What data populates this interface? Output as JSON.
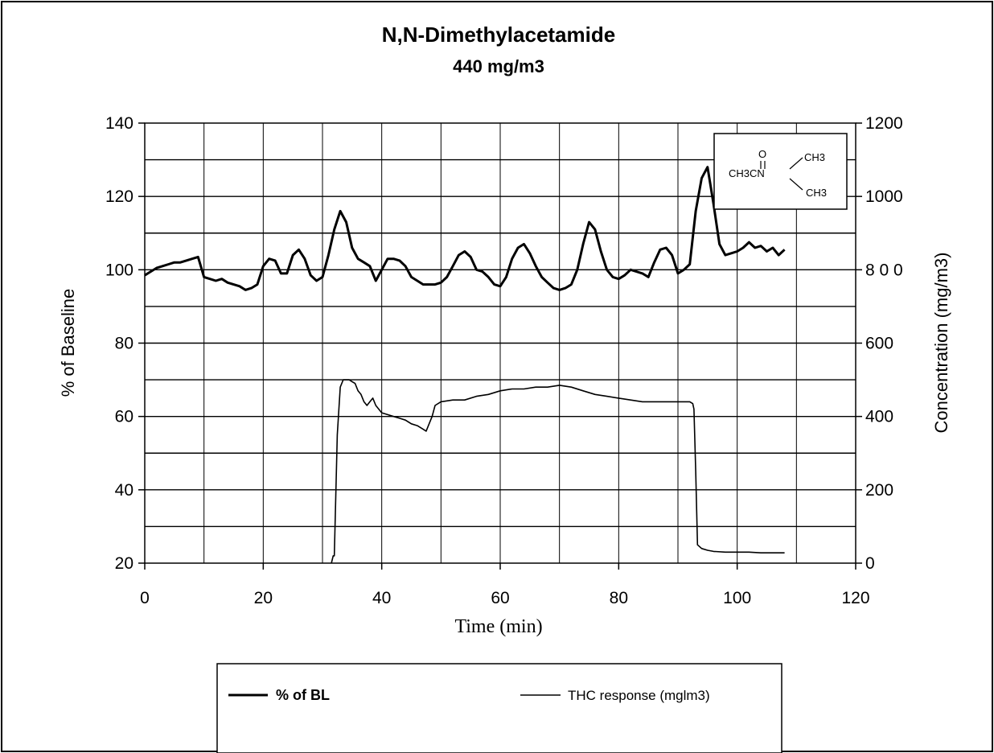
{
  "chart_data": {
    "type": "line",
    "title": "N,N-Dimethylacetamide",
    "subtitle": "440 mg/m3",
    "xlabel": "Time (min)",
    "ylabel_left": "% of Baseline",
    "ylabel_right": "Concentration (mg/m3)",
    "xlim": [
      0,
      120
    ],
    "ylim_left": [
      20,
      140
    ],
    "ylim_right": [
      0,
      1200
    ],
    "x_ticks": [
      "0",
      "20",
      "40",
      "60",
      "80",
      "100",
      "120"
    ],
    "y_left_ticks": [
      "20",
      "40",
      "60",
      "80",
      "100",
      "120",
      "140"
    ],
    "y_right_ticks": [
      "0",
      "200",
      "400",
      "600",
      "8 0 0",
      "1000",
      "1200"
    ],
    "grid": true,
    "legend_position": "bottom",
    "structure_labels": [
      "O",
      "CH3",
      "CH3CN",
      "CH3"
    ],
    "series": [
      {
        "name": "% of BL",
        "axis": "left",
        "color": "#000000",
        "x": [
          0,
          1,
          2,
          3,
          4,
          5,
          6,
          7,
          8,
          9,
          10,
          11,
          12,
          13,
          14,
          15,
          16,
          17,
          18,
          19,
          20,
          21,
          22,
          23,
          24,
          25,
          26,
          27,
          28,
          29,
          30,
          31,
          32,
          33,
          34,
          35,
          36,
          37,
          38,
          39,
          40,
          41,
          42,
          43,
          44,
          45,
          46,
          47,
          48,
          49,
          50,
          51,
          52,
          53,
          54,
          55,
          56,
          57,
          58,
          59,
          60,
          61,
          62,
          63,
          64,
          65,
          66,
          67,
          68,
          69,
          70,
          71,
          72,
          73,
          74,
          75,
          76,
          77,
          78,
          79,
          80,
          81,
          82,
          83,
          84,
          85,
          86,
          87,
          88,
          89,
          90,
          91,
          92,
          93,
          94,
          95,
          96,
          97,
          98,
          99,
          100,
          101,
          102,
          103,
          104,
          105,
          106,
          107,
          108
        ],
        "values": [
          98.5,
          99.5,
          100.5,
          101,
          101.5,
          102,
          102,
          102.5,
          103,
          103.5,
          98,
          97.5,
          97,
          97.5,
          96.5,
          96,
          95.5,
          94.5,
          95,
          96,
          101,
          103,
          102.5,
          99,
          99,
          104,
          105.5,
          103,
          98.5,
          97,
          98,
          104,
          111,
          116,
          113,
          106,
          103,
          102,
          101,
          97,
          100,
          103,
          103,
          102.5,
          101,
          98,
          97,
          96,
          96,
          96,
          96.5,
          98,
          101,
          104,
          105,
          103.5,
          100,
          99.5,
          98,
          96,
          95.5,
          98,
          103,
          106,
          107,
          104.5,
          101,
          98,
          96.5,
          95,
          94.5,
          95,
          96,
          100,
          107,
          113,
          111,
          105,
          100,
          98,
          97.5,
          98.5,
          100,
          99.5,
          99,
          98,
          102,
          105.5,
          106,
          104,
          99,
          100,
          101.5,
          116,
          125,
          128,
          118,
          107,
          104,
          104.5,
          105,
          106,
          107.5,
          106,
          106.5,
          105,
          106,
          104,
          105.5
        ]
      },
      {
        "name": "THC response (mglm3)",
        "axis": "right",
        "color": "#000000",
        "x": [
          31.5,
          31.8,
          32,
          32.5,
          33,
          33.5,
          34,
          34.5,
          35,
          35.5,
          36,
          36.5,
          37,
          37.5,
          38,
          38.5,
          39,
          39.5,
          40,
          41,
          42,
          43,
          44,
          45,
          46,
          47,
          47.5,
          48,
          48.5,
          49,
          50,
          52,
          54,
          56,
          58,
          60,
          62,
          64,
          66,
          68,
          70,
          72,
          74,
          76,
          78,
          80,
          82,
          84,
          86,
          88,
          90,
          92,
          92.5,
          92.7,
          93,
          93.3,
          94,
          95,
          96,
          98,
          100,
          102,
          104,
          106,
          108
        ],
        "values": [
          0,
          20,
          20,
          350,
          480,
          500,
          500,
          500,
          495,
          490,
          470,
          460,
          440,
          430,
          440,
          450,
          430,
          420,
          410,
          405,
          400,
          395,
          390,
          380,
          375,
          365,
          360,
          380,
          400,
          430,
          440,
          445,
          445,
          455,
          460,
          470,
          475,
          475,
          480,
          480,
          485,
          480,
          470,
          460,
          455,
          450,
          445,
          440,
          440,
          440,
          440,
          440,
          435,
          420,
          250,
          50,
          40,
          35,
          32,
          30,
          30,
          30,
          28,
          28,
          28
        ]
      }
    ]
  }
}
